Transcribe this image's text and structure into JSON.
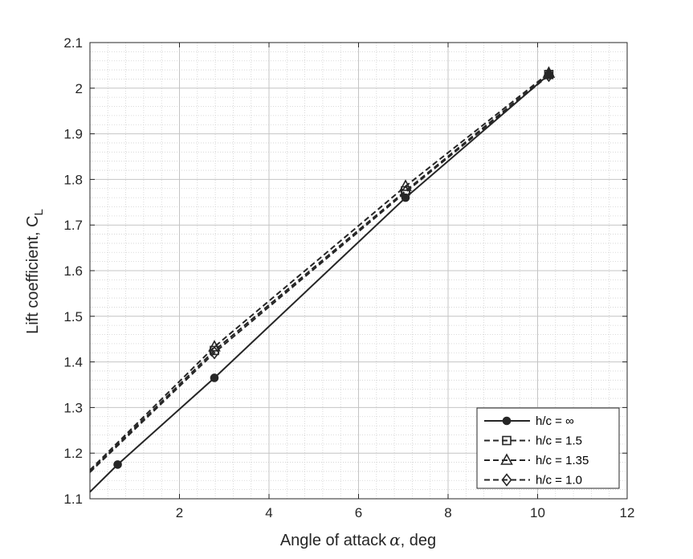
{
  "chart_data": {
    "type": "line",
    "xlabel": "Angle of attack",
    "xlabel_symbol": "α",
    "xlabel_unit": ", deg",
    "ylabel": "Lift coefficient, C",
    "ylabel_sub": "L",
    "xlim": [
      0,
      12
    ],
    "ylim": [
      1.1,
      2.1
    ],
    "xticks": [
      2,
      4,
      6,
      8,
      10,
      12
    ],
    "yticks": [
      1.1,
      1.2,
      1.3,
      1.4,
      1.5,
      1.6,
      1.7,
      1.8,
      1.9,
      2.0,
      2.1
    ],
    "ytick_labels": [
      "1.1",
      "1.2",
      "1.3",
      "1.4",
      "1.5",
      "1.6",
      "1.7",
      "1.8",
      "1.9",
      "2",
      "2.1"
    ],
    "grid": "major-and-minor",
    "legend_position": "bottom-right",
    "series": [
      {
        "name": "h/c = ∞",
        "marker": "filled-circle",
        "line_style": "solid",
        "x": [
          0.0,
          0.62,
          2.78,
          7.05,
          10.25
        ],
        "y": [
          1.115,
          1.175,
          1.365,
          1.76,
          2.03
        ]
      },
      {
        "name": "h/c = 1.5",
        "marker": "square",
        "line_style": "dashed",
        "x": [
          0.0,
          2.78,
          7.05,
          10.25
        ],
        "y": [
          1.16,
          1.425,
          1.775,
          2.03
        ]
      },
      {
        "name": "h/c = 1.35",
        "marker": "triangle",
        "line_style": "dashed",
        "x": [
          0.0,
          2.78,
          7.05,
          10.25
        ],
        "y": [
          1.163,
          1.433,
          1.785,
          2.033
        ]
      },
      {
        "name": "h/c = 1.0",
        "marker": "diamond",
        "line_style": "dashed",
        "x": [
          0.0,
          2.78,
          7.05,
          10.25
        ],
        "y": [
          1.158,
          1.42,
          1.772,
          2.028
        ]
      }
    ]
  }
}
